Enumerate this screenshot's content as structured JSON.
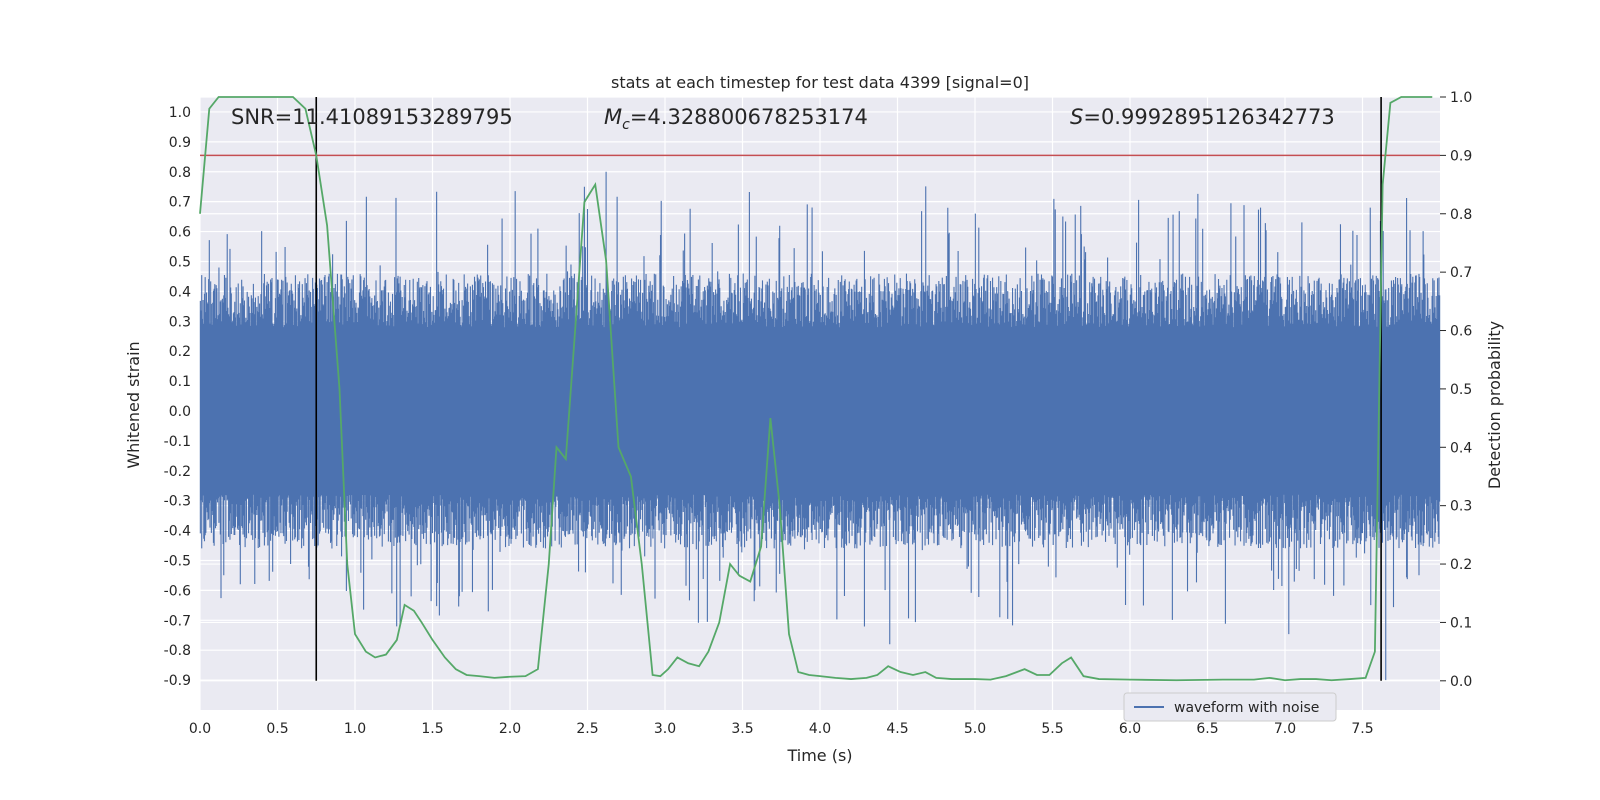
{
  "chart_data": {
    "type": "line",
    "title": "stats at each timestep for test data 4399 [signal=0]",
    "xlabel": "Time (s)",
    "ylabel": "Whitened strain",
    "y2label": "Detection probability",
    "xlim": [
      0.0,
      8.0
    ],
    "ylim": [
      -1.0,
      1.05
    ],
    "y2lim": [
      -0.05,
      1.0
    ],
    "xticks": [
      "0.0",
      "0.5",
      "1.0",
      "1.5",
      "2.0",
      "2.5",
      "3.0",
      "3.5",
      "4.0",
      "4.5",
      "5.0",
      "5.5",
      "6.0",
      "6.5",
      "7.0",
      "7.5"
    ],
    "xtick_values": [
      0.0,
      0.5,
      1.0,
      1.5,
      2.0,
      2.5,
      3.0,
      3.5,
      4.0,
      4.5,
      5.0,
      5.5,
      6.0,
      6.5,
      7.0,
      7.5
    ],
    "yticks": [
      "1.0",
      "0.9",
      "0.8",
      "0.7",
      "0.6",
      "0.5",
      "0.4",
      "0.3",
      "0.2",
      "0.1",
      "0.0",
      "-0.1",
      "-0.2",
      "-0.3",
      "-0.4",
      "-0.5",
      "-0.6",
      "-0.7",
      "-0.8",
      "-0.9"
    ],
    "ytick_values": [
      1.0,
      0.9,
      0.8,
      0.7,
      0.6,
      0.5,
      0.4,
      0.3,
      0.2,
      0.1,
      0.0,
      -0.1,
      -0.2,
      -0.3,
      -0.4,
      -0.5,
      -0.6,
      -0.7,
      -0.8,
      -0.9
    ],
    "y2ticks": [
      "1.0",
      "0.9",
      "0.8",
      "0.7",
      "0.6",
      "0.5",
      "0.4",
      "0.3",
      "0.2",
      "0.1",
      "0.0"
    ],
    "y2tick_values": [
      1.0,
      0.9,
      0.8,
      0.7,
      0.6,
      0.5,
      0.4,
      0.3,
      0.2,
      0.1,
      0.0
    ],
    "annotations": {
      "snr": "SNR=11.41089153289795",
      "mc_symbol": "M",
      "mc_subscript": "c",
      "mc_value": "=4.328800678253174",
      "s_symbol": "S",
      "s_value": "=0.9992895126342773"
    },
    "threshold": {
      "axis": "y2",
      "value": 0.9,
      "color": "#c44e52"
    },
    "vertical_markers": [
      0.75,
      7.62
    ],
    "strain_series": {
      "name": "waveform with noise",
      "color": "#4c72b0",
      "amplitude_core": 0.4,
      "notable_peaks": [
        {
          "t": 2.62,
          "y": 0.8
        },
        {
          "t": 2.48,
          "y": 0.75
        },
        {
          "t": 4.45,
          "y": -0.78
        },
        {
          "t": 7.65,
          "y": -0.9
        },
        {
          "t": 7.55,
          "y": 0.68
        },
        {
          "t": 1.86,
          "y": -0.67
        },
        {
          "t": 5.16,
          "y": -0.69
        }
      ]
    },
    "probability_series": {
      "name": "Detection probability",
      "color": "#55a868",
      "t": [
        0.0,
        0.06,
        0.12,
        0.2,
        0.3,
        0.4,
        0.5,
        0.6,
        0.68,
        0.75,
        0.82,
        0.9,
        0.95,
        1.0,
        1.07,
        1.13,
        1.2,
        1.27,
        1.32,
        1.38,
        1.43,
        1.5,
        1.58,
        1.65,
        1.72,
        1.8,
        1.9,
        2.0,
        2.1,
        2.18,
        2.25,
        2.3,
        2.36,
        2.42,
        2.48,
        2.55,
        2.62,
        2.7,
        2.78,
        2.85,
        2.92,
        2.97,
        3.02,
        3.08,
        3.15,
        3.22,
        3.28,
        3.35,
        3.42,
        3.48,
        3.55,
        3.62,
        3.68,
        3.74,
        3.8,
        3.86,
        3.93,
        4.0,
        4.1,
        4.2,
        4.3,
        4.37,
        4.44,
        4.52,
        4.6,
        4.68,
        4.75,
        4.85,
        5.0,
        5.1,
        5.2,
        5.32,
        5.4,
        5.48,
        5.56,
        5.62,
        5.7,
        5.8,
        6.0,
        6.3,
        6.6,
        6.8,
        6.9,
        7.0,
        7.1,
        7.2,
        7.3,
        7.42,
        7.52,
        7.58,
        7.63,
        7.68,
        7.75,
        7.85,
        7.95
      ],
      "p": [
        0.8,
        0.98,
        1.0,
        1.0,
        1.0,
        1.0,
        1.0,
        1.0,
        0.98,
        0.9,
        0.78,
        0.5,
        0.2,
        0.08,
        0.05,
        0.04,
        0.045,
        0.07,
        0.13,
        0.12,
        0.1,
        0.07,
        0.04,
        0.02,
        0.01,
        0.008,
        0.005,
        0.007,
        0.008,
        0.02,
        0.2,
        0.4,
        0.38,
        0.6,
        0.82,
        0.85,
        0.72,
        0.4,
        0.35,
        0.2,
        0.01,
        0.008,
        0.02,
        0.04,
        0.03,
        0.025,
        0.05,
        0.1,
        0.2,
        0.18,
        0.17,
        0.23,
        0.45,
        0.3,
        0.08,
        0.015,
        0.01,
        0.008,
        0.005,
        0.003,
        0.005,
        0.01,
        0.025,
        0.015,
        0.01,
        0.015,
        0.005,
        0.003,
        0.003,
        0.002,
        0.008,
        0.02,
        0.01,
        0.01,
        0.03,
        0.04,
        0.008,
        0.003,
        0.002,
        0.001,
        0.002,
        0.002,
        0.005,
        0.001,
        0.003,
        0.003,
        0.001,
        0.003,
        0.005,
        0.05,
        0.85,
        0.99,
        1.0,
        1.0,
        1.0
      ]
    },
    "legend": {
      "label": "waveform with noise",
      "placement": "lower-right"
    }
  }
}
